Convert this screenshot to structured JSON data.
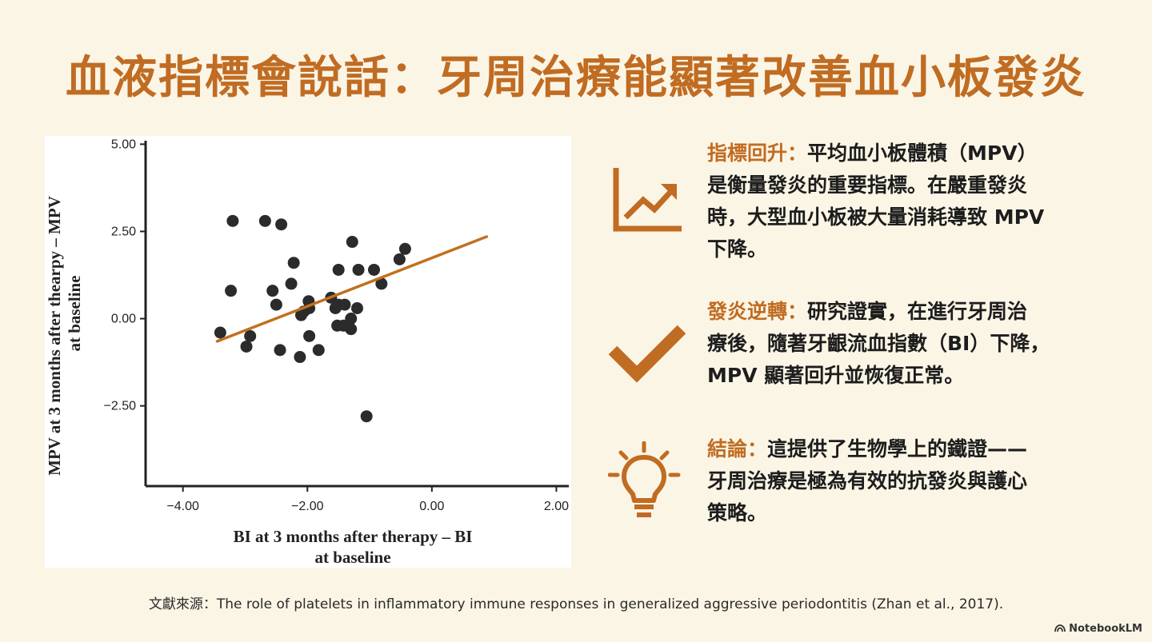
{
  "title": "血液指標會說話：牙周治療能顯著改善血小板發炎",
  "chart_data": {
    "type": "scatter",
    "xlabel_lines": [
      "BI at 3 months after therapy – BI",
      "at baseline"
    ],
    "ylabel_lines": [
      "MPV at 3 months after thearpy – MPV",
      "at baseline"
    ],
    "xlim": [
      -4.6,
      2.2
    ],
    "ylim": [
      -4.8,
      5.1
    ],
    "x_ticks": [
      -4.0,
      -2.0,
      0.0,
      2.0
    ],
    "x_tick_labels": [
      "−4.00",
      "−2.00",
      "0.00",
      "2.00"
    ],
    "y_ticks": [
      5.0,
      2.5,
      0.0,
      -2.5
    ],
    "y_tick_labels": [
      "5.00",
      "2.50",
      "0.00",
      "−2.50"
    ],
    "grid": false,
    "point_color": "#2b2b2b",
    "line_color": "#c2701e",
    "points": [
      {
        "x": -3.2,
        "y": 2.8
      },
      {
        "x": -2.68,
        "y": 2.8
      },
      {
        "x": -2.42,
        "y": 2.7
      },
      {
        "x": -1.28,
        "y": 2.2
      },
      {
        "x": -0.43,
        "y": 2.0
      },
      {
        "x": -0.52,
        "y": 1.7
      },
      {
        "x": -2.22,
        "y": 1.6
      },
      {
        "x": -1.5,
        "y": 1.4
      },
      {
        "x": -1.18,
        "y": 1.4
      },
      {
        "x": -0.93,
        "y": 1.4
      },
      {
        "x": -2.26,
        "y": 1.0
      },
      {
        "x": -0.81,
        "y": 1.0
      },
      {
        "x": -3.23,
        "y": 0.8
      },
      {
        "x": -2.56,
        "y": 0.8
      },
      {
        "x": -1.62,
        "y": 0.6
      },
      {
        "x": -1.98,
        "y": 0.5
      },
      {
        "x": -2.5,
        "y": 0.4
      },
      {
        "x": -1.5,
        "y": 0.4
      },
      {
        "x": -1.4,
        "y": 0.4
      },
      {
        "x": -1.55,
        "y": 0.3
      },
      {
        "x": -1.2,
        "y": 0.3
      },
      {
        "x": -1.97,
        "y": 0.3
      },
      {
        "x": -2.06,
        "y": 0.2
      },
      {
        "x": -2.1,
        "y": 0.1
      },
      {
        "x": -1.3,
        "y": 0.0
      },
      {
        "x": -1.52,
        "y": -0.2
      },
      {
        "x": -1.42,
        "y": -0.2
      },
      {
        "x": -1.3,
        "y": -0.3
      },
      {
        "x": -3.4,
        "y": -0.4
      },
      {
        "x": -2.92,
        "y": -0.5
      },
      {
        "x": -1.97,
        "y": -0.5
      },
      {
        "x": -2.98,
        "y": -0.8
      },
      {
        "x": -2.44,
        "y": -0.9
      },
      {
        "x": -1.82,
        "y": -0.9
      },
      {
        "x": -2.12,
        "y": -1.1
      },
      {
        "x": -1.05,
        "y": -2.8
      }
    ],
    "trendline": {
      "x1": -3.45,
      "y1": -0.65,
      "x2": 0.88,
      "y2": 2.35
    }
  },
  "points": [
    {
      "icon": "rising-line-chart-icon",
      "heading": "指標回升：",
      "lines": [
        "平均血小板體積（MPV）",
        "是衡量發炎的重要指標。在嚴重發炎",
        "時，大型血小板被大量消耗導致 MPV",
        "下降。"
      ]
    },
    {
      "icon": "checkmark-icon",
      "heading": "發炎逆轉：",
      "lines": [
        "研究證實，在進行牙周治",
        "療後，隨著牙齦流血指數（BI）下降，",
        "MPV 顯著回升並恢復正常。"
      ]
    },
    {
      "icon": "lightbulb-icon",
      "heading": "結論：",
      "lines": [
        "這提供了生物學上的鐵證——",
        "牙周治療是極為有效的抗發炎與護心",
        "策略。"
      ]
    }
  ],
  "source": "文獻來源：The role of platelets in inflammatory immune responses in generalized aggressive periodontitis (Zhan et al., 2017).",
  "brand": "NotebookLM",
  "colors": {
    "accent": "#c06c22",
    "background": "#fbf5e6",
    "text": "#1d1d1d"
  }
}
